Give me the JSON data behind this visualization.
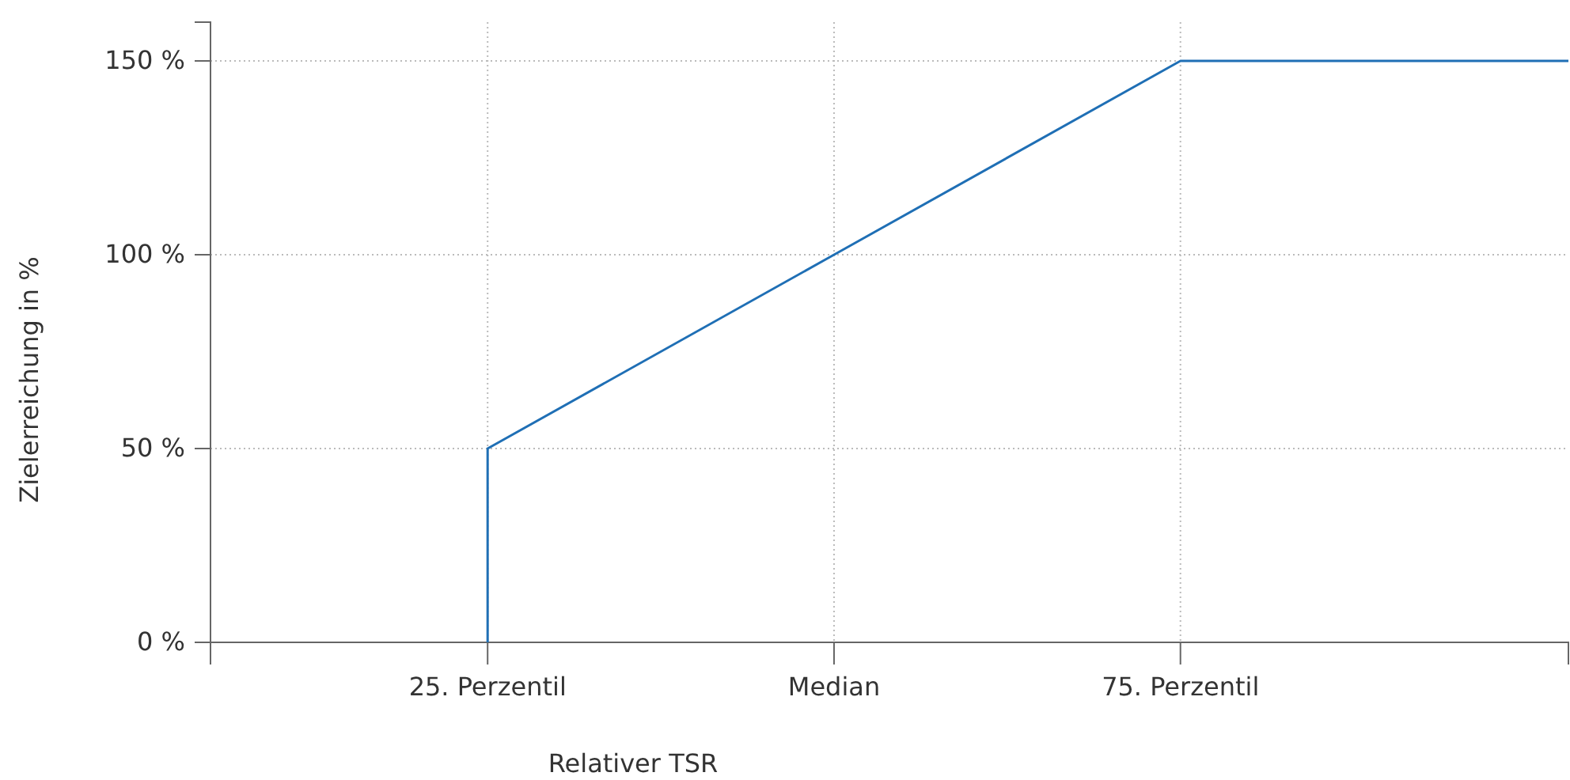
{
  "chart_data": {
    "type": "line",
    "xlabel": "Relativer TSR",
    "ylabel": "Zielerreichung in %",
    "x": [
      25,
      25,
      50,
      75,
      103
    ],
    "series": [
      {
        "color": "#1f6fb5",
        "values": [
          0,
          50,
          100,
          150,
          150
        ]
      }
    ],
    "xlim": [
      5,
      103
    ],
    "xticks": [
      {
        "value": 25,
        "label": "25. Perzentil"
      },
      {
        "value": 50,
        "label": "Median"
      },
      {
        "value": 75,
        "label": "75. Perzentil"
      }
    ],
    "ylim": [
      0,
      160
    ],
    "yticks": [
      {
        "value": 0,
        "label": "0 %"
      },
      {
        "value": 50,
        "label": "50 %"
      },
      {
        "value": 100,
        "label": "100 %"
      },
      {
        "value": 150,
        "label": "150 %"
      }
    ],
    "grid": true,
    "line_style": "solid",
    "marker": "none"
  }
}
